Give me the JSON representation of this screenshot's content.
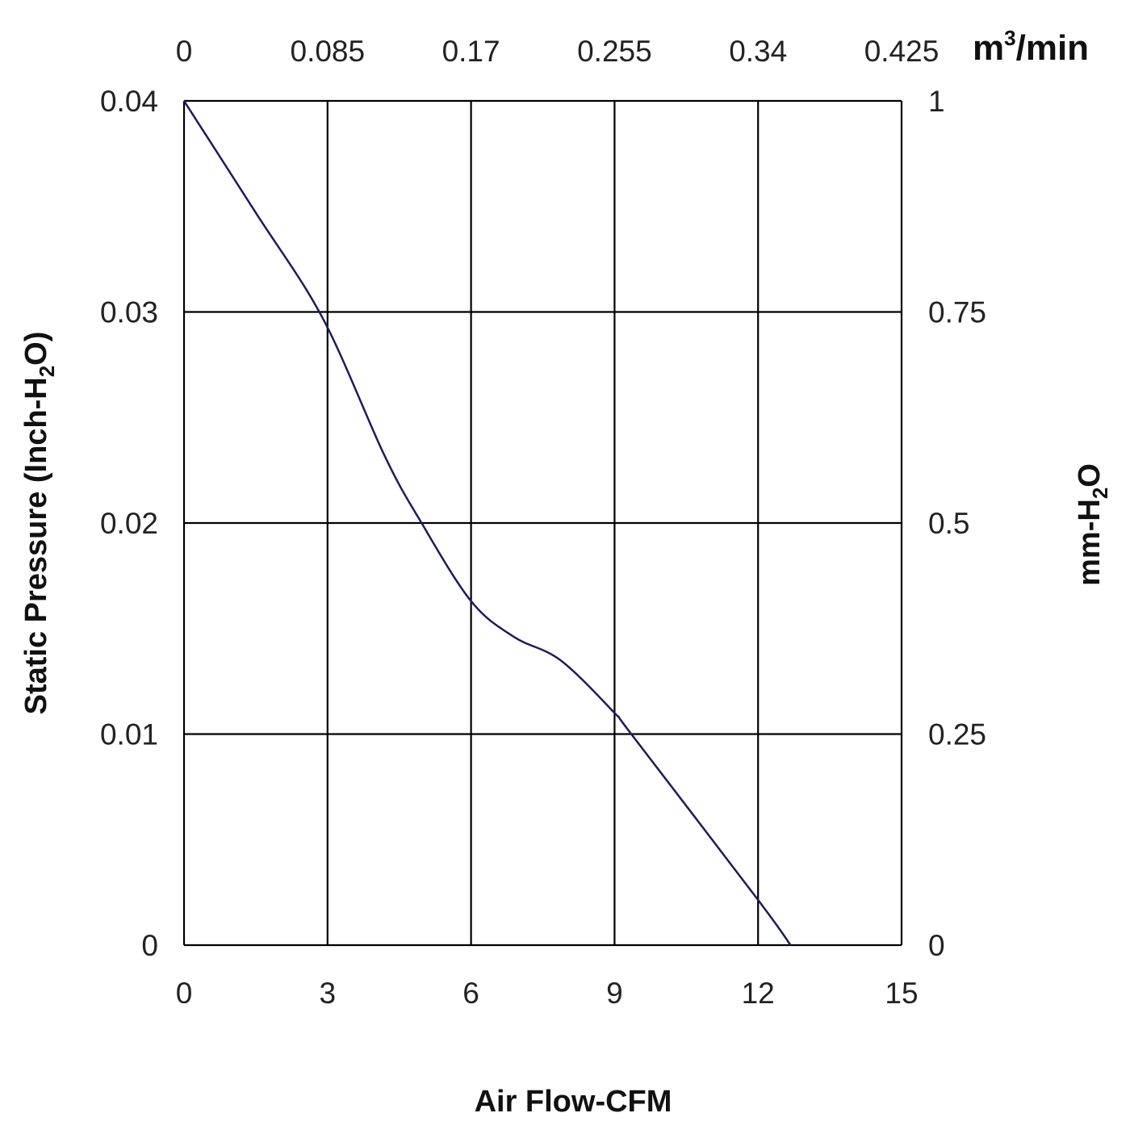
{
  "chart_data": {
    "type": "line",
    "xlabel": "Air Flow-CFM",
    "ylabel_main": "Static Pressure (Inch-H",
    "ylabel_sub": "2",
    "ylabel_end": "O)",
    "y2label_main": "mm-H",
    "y2label_sub": "2",
    "y2label_end": "O",
    "x2label_main": "m",
    "x2label_sup": "3",
    "x2label_end": "/min",
    "xlim": [
      0,
      15
    ],
    "ylim": [
      0,
      0.04
    ],
    "x_ticks": [
      "0",
      "3",
      "6",
      "9",
      "12",
      "15"
    ],
    "x_tick_values": [
      0,
      3,
      6,
      9,
      12,
      15
    ],
    "y_ticks": [
      "0",
      "0.01",
      "0.02",
      "0.03",
      "0.04"
    ],
    "y_tick_values": [
      0,
      0.01,
      0.02,
      0.03,
      0.04
    ],
    "x2_ticks": [
      "0",
      "0.085",
      "0.17",
      "0.255",
      "0.34",
      "0.425"
    ],
    "y2_ticks": [
      "0",
      "0.25",
      "0.5",
      "0.75",
      "1"
    ],
    "grid": true,
    "line_color": "#1c1c5e",
    "series": [
      {
        "name": "Static Pressure",
        "x": [
          0,
          1.5,
          2.9,
          4.19,
          4.94,
          6.0,
          6.9,
          7.87,
          9.0,
          9.35,
          12.0,
          12.68
        ],
        "y": [
          0.04,
          0.0347,
          0.0297,
          0.0232,
          0.0201,
          0.0163,
          0.0146,
          0.0135,
          0.011,
          0.01,
          0.00214,
          0.0
        ]
      }
    ]
  }
}
